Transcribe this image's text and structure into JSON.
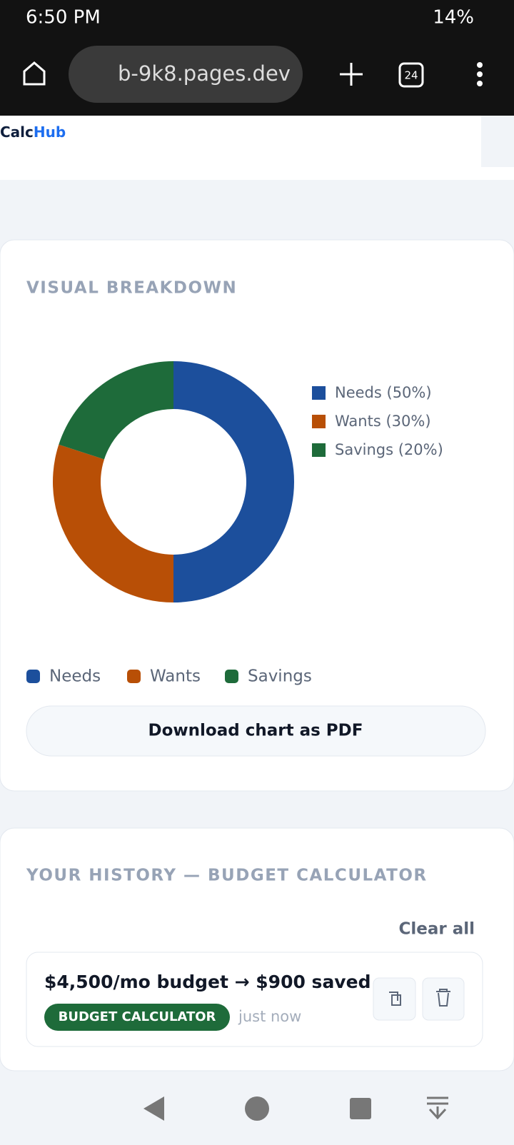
{
  "status_bar": {
    "time": "6:50 PM",
    "battery": "14%"
  },
  "browser": {
    "url": "b-9k8.pages.dev",
    "tab_count": "24"
  },
  "header": {
    "logo_calc": "Calc",
    "logo_hub": "Hub"
  },
  "breakdown": {
    "title": "VISUAL BREAKDOWN",
    "chart": {
      "type": "pie",
      "categories": [
        "Needs",
        "Wants",
        "Savings"
      ],
      "values": [
        50,
        30,
        20
      ],
      "value_labels": [
        "Needs (50%)",
        "Wants (30%)",
        "Savings (20%)"
      ],
      "colors": [
        "#1c4f9c",
        "#b84f06",
        "#1e6b3a"
      ]
    },
    "button": "Download chart as PDF"
  },
  "history": {
    "title": "YOUR HISTORY — BUDGET CALCULATOR",
    "clear": "Clear all",
    "items": [
      {
        "summary": "$4,500/mo budget → $900 saved",
        "badge": "BUDGET CALCULATOR",
        "time": "just now"
      }
    ]
  }
}
